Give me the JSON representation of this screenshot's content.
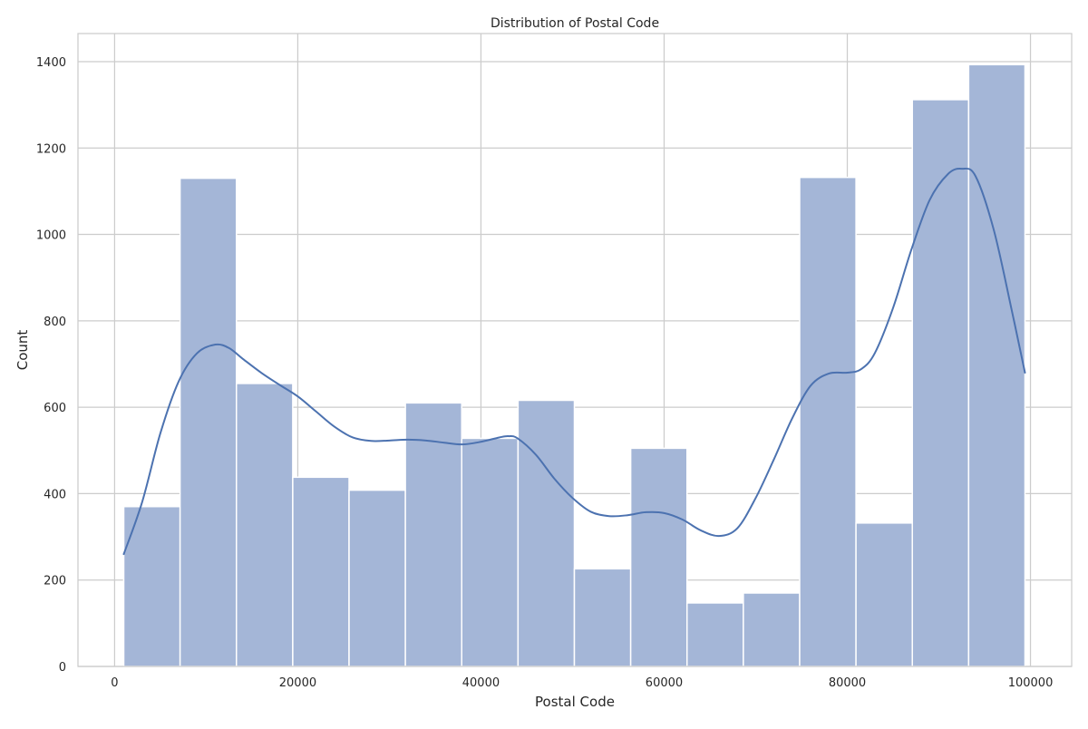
{
  "chart_data": {
    "type": "bar",
    "subtype": "histogram",
    "title": "Distribution of Postal Code",
    "xlabel": "Postal Code",
    "ylabel": "Count",
    "xlim": [
      -4000,
      104500
    ],
    "ylim": [
      0,
      1465
    ],
    "xticks": [
      0,
      20000,
      40000,
      60000,
      80000,
      100000
    ],
    "yticks": [
      0,
      200,
      400,
      600,
      800,
      1000,
      1200,
      1400
    ],
    "grid": true,
    "legend": "none",
    "bins": [
      {
        "x0": 1000,
        "x1": 7150,
        "count": 370
      },
      {
        "x0": 7150,
        "x1": 13300,
        "count": 1130
      },
      {
        "x0": 13300,
        "x1": 19450,
        "count": 655
      },
      {
        "x0": 19450,
        "x1": 25600,
        "count": 438
      },
      {
        "x0": 25600,
        "x1": 31750,
        "count": 408
      },
      {
        "x0": 31750,
        "x1": 37900,
        "count": 610
      },
      {
        "x0": 37900,
        "x1": 44050,
        "count": 528
      },
      {
        "x0": 44050,
        "x1": 50200,
        "count": 616
      },
      {
        "x0": 50200,
        "x1": 56350,
        "count": 226
      },
      {
        "x0": 56350,
        "x1": 62500,
        "count": 505
      },
      {
        "x0": 62500,
        "x1": 68650,
        "count": 147
      },
      {
        "x0": 68650,
        "x1": 74800,
        "count": 170
      },
      {
        "x0": 74800,
        "x1": 80950,
        "count": 1132
      },
      {
        "x0": 80950,
        "x1": 87100,
        "count": 332
      },
      {
        "x0": 87100,
        "x1": 93250,
        "count": 1312
      },
      {
        "x0": 93250,
        "x1": 99400,
        "count": 1393
      }
    ],
    "kde": {
      "x": [
        1000,
        3000,
        5000,
        7000,
        9000,
        11000,
        12500,
        14000,
        16000,
        18000,
        20000,
        22000,
        24000,
        26000,
        28000,
        30000,
        32000,
        34000,
        36000,
        38000,
        40000,
        42000,
        43000,
        44000,
        46000,
        48000,
        50000,
        52000,
        54000,
        56000,
        58000,
        60000,
        62000,
        64000,
        66000,
        68000,
        70000,
        72000,
        74000,
        76000,
        78000,
        80000,
        81500,
        83000,
        85000,
        87000,
        89000,
        91000,
        92500,
        94000,
        96000,
        98000,
        99400
      ],
      "y": [
        260,
        380,
        540,
        660,
        725,
        745,
        737,
        712,
        680,
        652,
        625,
        590,
        555,
        530,
        522,
        523,
        525,
        523,
        518,
        514,
        520,
        530,
        533,
        528,
        490,
        435,
        390,
        358,
        348,
        350,
        357,
        355,
        340,
        315,
        302,
        320,
        390,
        480,
        575,
        650,
        678,
        680,
        688,
        725,
        830,
        965,
        1080,
        1140,
        1152,
        1135,
        1010,
        820,
        680
      ]
    },
    "colors": {
      "bar_fill": "#a4b6d7",
      "bar_edge": "#ffffff",
      "kde_line": "#4c72b0",
      "grid": "#cccccc",
      "axis_frame": "#cccccc"
    }
  }
}
